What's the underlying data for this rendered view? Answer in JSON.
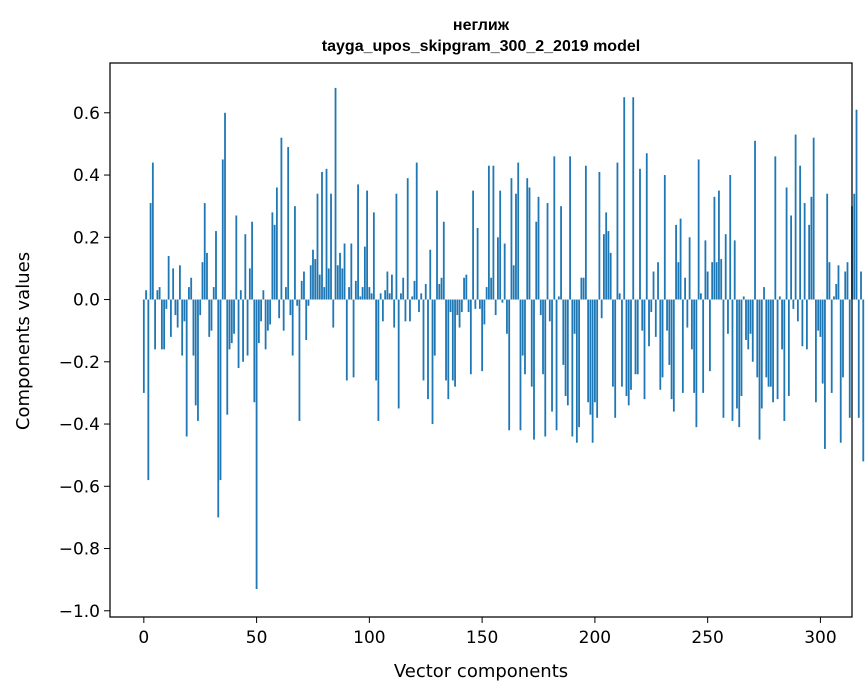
{
  "chart_data": {
    "type": "bar",
    "title": "неглиж",
    "subtitle": "tayga_upos_skipgram_300_2_2019 model",
    "xlabel": "Vector components",
    "ylabel": "Components values",
    "xlim": [
      -15,
      314
    ],
    "ylim": [
      -1.02,
      0.76
    ],
    "xticks": [
      0,
      50,
      100,
      150,
      200,
      250,
      300
    ],
    "xtick_labels": [
      "0",
      "50",
      "100",
      "150",
      "200",
      "250",
      "300"
    ],
    "yticks": [
      -1.0,
      -0.8,
      -0.6,
      -0.4,
      -0.2,
      0.0,
      0.2,
      0.4,
      0.6
    ],
    "ytick_labels": [
      "−1.0",
      "−0.8",
      "−0.6",
      "−0.4",
      "−0.2",
      "0.0",
      "0.2",
      "0.4",
      "0.6"
    ],
    "bar_color": "#1f77b4",
    "values": [
      -0.3,
      0.03,
      -0.58,
      0.31,
      0.44,
      -0.16,
      0.03,
      0.04,
      -0.16,
      -0.16,
      -0.03,
      0.14,
      -0.12,
      0.1,
      -0.05,
      -0.09,
      0.11,
      -0.18,
      -0.07,
      -0.44,
      0.04,
      0.07,
      -0.18,
      -0.34,
      -0.39,
      -0.05,
      0.12,
      0.31,
      0.15,
      -0.12,
      -0.1,
      0.04,
      0.22,
      -0.7,
      -0.58,
      0.45,
      0.6,
      -0.37,
      -0.16,
      -0.14,
      -0.11,
      0.27,
      -0.22,
      0.03,
      -0.2,
      0.21,
      -0.18,
      0.1,
      0.25,
      -0.33,
      -0.93,
      -0.14,
      -0.07,
      0.03,
      -0.16,
      -0.1,
      -0.08,
      0.28,
      0.24,
      0.36,
      -0.06,
      0.52,
      -0.1,
      0.04,
      0.49,
      -0.05,
      -0.18,
      0.3,
      -0.02,
      -0.39,
      0.06,
      0.09,
      -0.13,
      -0.02,
      0.11,
      0.16,
      0.13,
      0.34,
      0.08,
      0.41,
      0.04,
      0.42,
      0.1,
      0.34,
      -0.09,
      0.68,
      0.11,
      0.15,
      0.1,
      0.18,
      -0.26,
      0.04,
      0.18,
      -0.25,
      0.06,
      0.37,
      0.01,
      0.04,
      0.17,
      0.35,
      0.04,
      0.02,
      0.28,
      -0.26,
      -0.39,
      0.02,
      -0.07,
      0.03,
      0.09,
      0.02,
      0.08,
      -0.09,
      0.34,
      -0.35,
      0.02,
      0.07,
      -0.07,
      0.39,
      -0.07,
      0.01,
      0.06,
      0.44,
      -0.04,
      0.02,
      -0.26,
      0.05,
      -0.32,
      0.16,
      -0.4,
      -0.18,
      0.35,
      0.05,
      0.07,
      0.25,
      -0.26,
      -0.32,
      -0.04,
      -0.26,
      -0.28,
      -0.05,
      -0.09,
      -0.04,
      0.07,
      0.08,
      -0.04,
      -0.24,
      0.35,
      -0.03,
      0.23,
      -0.03,
      -0.23,
      -0.08,
      0.04,
      0.43,
      0.07,
      0.43,
      -0.05,
      0.2,
      0.35,
      -0.01,
      0.18,
      -0.11,
      -0.42,
      0.39,
      0.11,
      0.34,
      0.44,
      -0.42,
      -0.18,
      -0.24,
      0.39,
      0.36,
      -0.28,
      -0.45,
      0.25,
      0.33,
      -0.05,
      -0.24,
      -0.44,
      0.31,
      -0.07,
      -0.36,
      0.46,
      -0.42,
      0.01,
      0.3,
      -0.21,
      -0.31,
      -0.34,
      0.46,
      -0.44,
      -0.11,
      -0.46,
      -0.41,
      0.07,
      0.07,
      0.43,
      -0.33,
      -0.37,
      -0.46,
      -0.33,
      -0.38,
      0.41,
      -0.06,
      0.21,
      0.28,
      0.22,
      0.15,
      -0.28,
      -0.38,
      0.44,
      0.02,
      -0.28,
      0.65,
      -0.31,
      -0.34,
      -0.29,
      0.65,
      -0.24,
      -0.24,
      0.42,
      -0.1,
      -0.32,
      0.47,
      -0.15,
      -0.04,
      0.09,
      -0.12,
      0.12,
      -0.29,
      -0.25,
      0.4,
      -0.1,
      -0.21,
      -0.32,
      -0.36,
      0.24,
      0.12,
      0.26,
      -0.3,
      0.07,
      -0.09,
      0.2,
      -0.16,
      -0.3,
      -0.41,
      0.45,
      0.02,
      -0.3,
      0.19,
      0.09,
      -0.23,
      0.12,
      0.33,
      0.12,
      0.35,
      0.13,
      -0.38,
      0.21,
      -0.11,
      0.4,
      -0.39,
      0.19,
      -0.35,
      -0.41,
      -0.31,
      0.01,
      -0.13,
      -0.16,
      -0.11,
      -0.2,
      0.51,
      -0.25,
      -0.45,
      -0.35,
      0.04,
      -0.25,
      -0.28,
      -0.28,
      -0.33,
      0.46,
      -0.32,
      0.01,
      -0.16,
      -0.39,
      0.36,
      -0.31,
      0.27,
      -0.03,
      0.53,
      -0.07,
      0.43,
      -0.15,
      0.31,
      -0.16,
      0.24,
      0.33,
      0.52,
      -0.33,
      -0.1,
      -0.12,
      -0.27,
      -0.48,
      0.34,
      0.12,
      -0.3,
      0.01,
      0.05,
      0.11,
      -0.46,
      -0.25,
      0.09,
      0.12,
      -0.38,
      0.3,
      0.34,
      0.61,
      -0.38,
      0.09,
      -0.52
    ]
  }
}
